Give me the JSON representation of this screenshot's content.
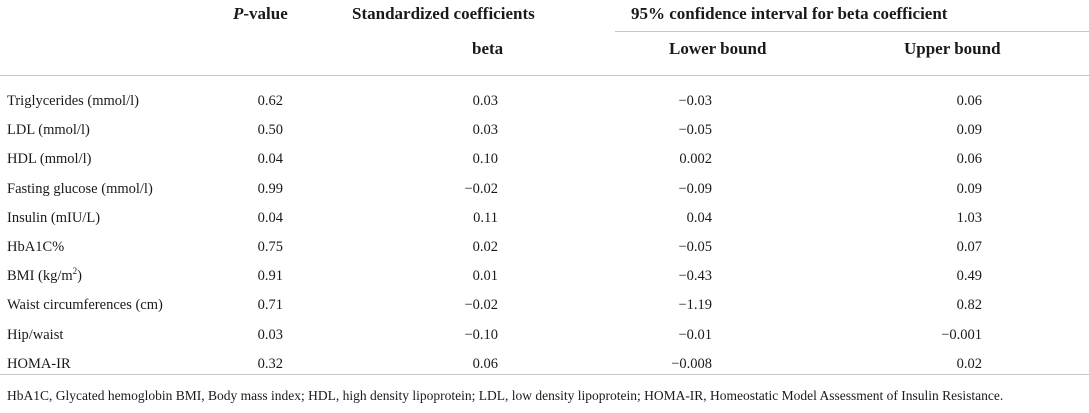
{
  "header": {
    "pvalue_italic": "P",
    "pvalue_rest": "-value",
    "std_coeff": "Standardized coefficients",
    "ci": "95% confidence interval for beta coefficient",
    "beta": "beta",
    "lower": "Lower bound",
    "upper": "Upper bound"
  },
  "rows": [
    {
      "label": "Triglycerides (mmol/l)",
      "p": "0.62",
      "beta": "0.03",
      "lower": "−0.03",
      "upper": "0.06"
    },
    {
      "label": "LDL (mmol/l)",
      "p": "0.50",
      "beta": "0.03",
      "lower": "−0.05",
      "upper": "0.09"
    },
    {
      "label": "HDL (mmol/l)",
      "p": "0.04",
      "beta": "0.10",
      "lower": "0.002",
      "upper": "0.06"
    },
    {
      "label": "Fasting glucose (mmol/l)",
      "p": "0.99",
      "beta": "−0.02",
      "lower": "−0.09",
      "upper": "0.09"
    },
    {
      "label": "Insulin (mIU/L)",
      "p": "0.04",
      "beta": "0.11",
      "lower": "0.04",
      "upper": "1.03"
    },
    {
      "label": "HbA1C%",
      "p": "0.75",
      "beta": "0.02",
      "lower": "−0.05",
      "upper": "0.07"
    },
    {
      "label": "BMI (kg/m",
      "label_sup": "2",
      "label_tail": ")",
      "p": "0.91",
      "beta": "0.01",
      "lower": "−0.43",
      "upper": "0.49"
    },
    {
      "label": "Waist circumferences (cm)",
      "p": "0.71",
      "beta": "−0.02",
      "lower": "−1.19",
      "upper": "0.82"
    },
    {
      "label": "Hip/waist",
      "p": "0.03",
      "beta": "−0.10",
      "lower": "−0.01",
      "upper": "−0.001"
    },
    {
      "label": "HOMA-IR",
      "p": "0.32",
      "beta": "0.06",
      "lower": "−0.008",
      "upper": "0.02"
    }
  ],
  "footnote": "HbA1C, Glycated hemoglobin BMI, Body mass index; HDL, high density lipoprotein; LDL, low density lipoprotein; HOMA-IR, Homeostatic Model Assessment of Insulin Resistance."
}
